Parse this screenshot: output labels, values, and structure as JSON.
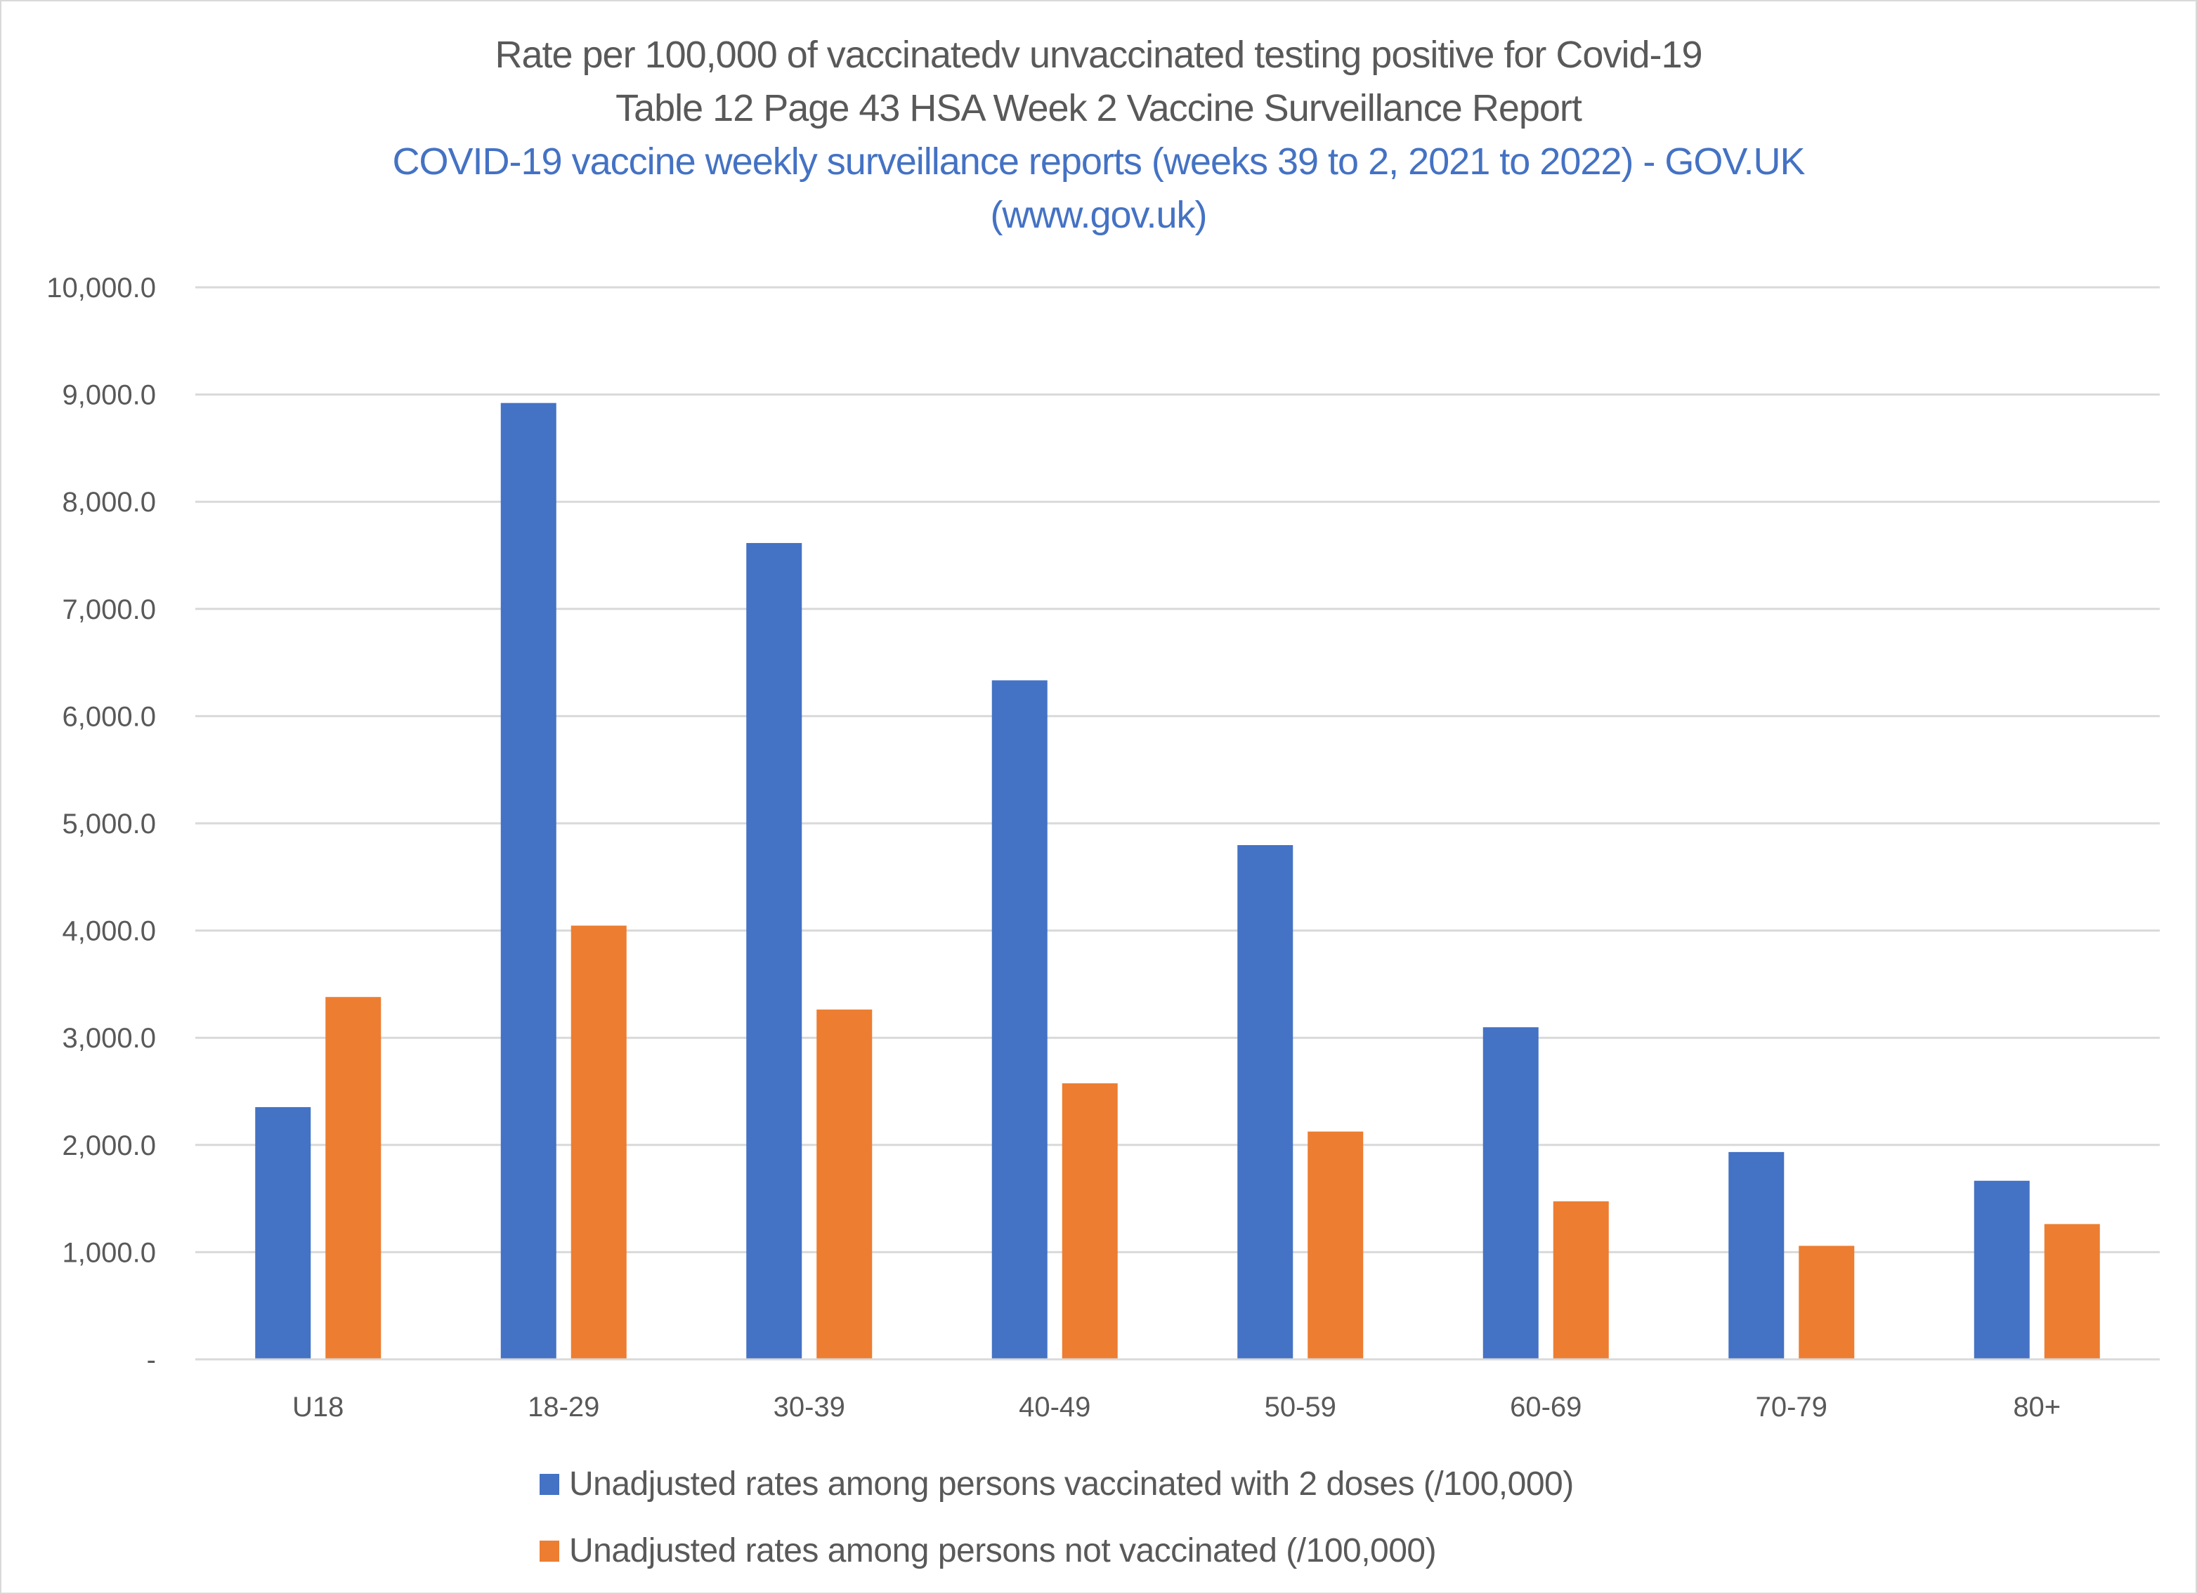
{
  "chart_data": {
    "type": "bar",
    "title": "Rate per 100,000 of vaccinatedv unvaccinated testing positive for Covid-19",
    "subtitle": "Table 12 Page 43 HSA Week 2 Vaccine Surveillance Report",
    "source_link_lines": [
      "COVID-19 vaccine weekly surveillance reports (weeks 39 to 2, 2021 to 2022) - GOV.UK",
      "(www.gov.uk)"
    ],
    "xlabel": "",
    "ylabel": "",
    "categories": [
      "U18",
      "18-29",
      "30-39",
      "40-49",
      "50-59",
      "60-69",
      "70-79",
      "80+"
    ],
    "series": [
      {
        "name": "Unadjusted rates among persons vaccinated  with 2 doses (/100,000)",
        "color": "#4472c4",
        "values": [
          2353,
          8921,
          7615,
          6334,
          4797,
          3098,
          1934,
          1666
        ]
      },
      {
        "name": "Unadjusted rates among persons not vaccinated (/100,000)",
        "color": "#ed7d31",
        "values": [
          3380,
          4046,
          3263,
          2575,
          2125,
          1474,
          1059,
          1262
        ]
      }
    ],
    "ylim": [
      0,
      10000
    ],
    "yticks": [
      0,
      1000,
      2000,
      3000,
      4000,
      5000,
      6000,
      7000,
      8000,
      9000,
      10000
    ],
    "ytick_labels": [
      "-",
      "1,000.0",
      "2,000.0",
      "3,000.0",
      "4,000.0",
      "5,000.0",
      "6,000.0",
      "7,000.0",
      "8,000.0",
      "9,000.0",
      "10,000.0"
    ],
    "grid": true,
    "gridline_color": "#d9d9d9",
    "legend_position": "bottom"
  }
}
